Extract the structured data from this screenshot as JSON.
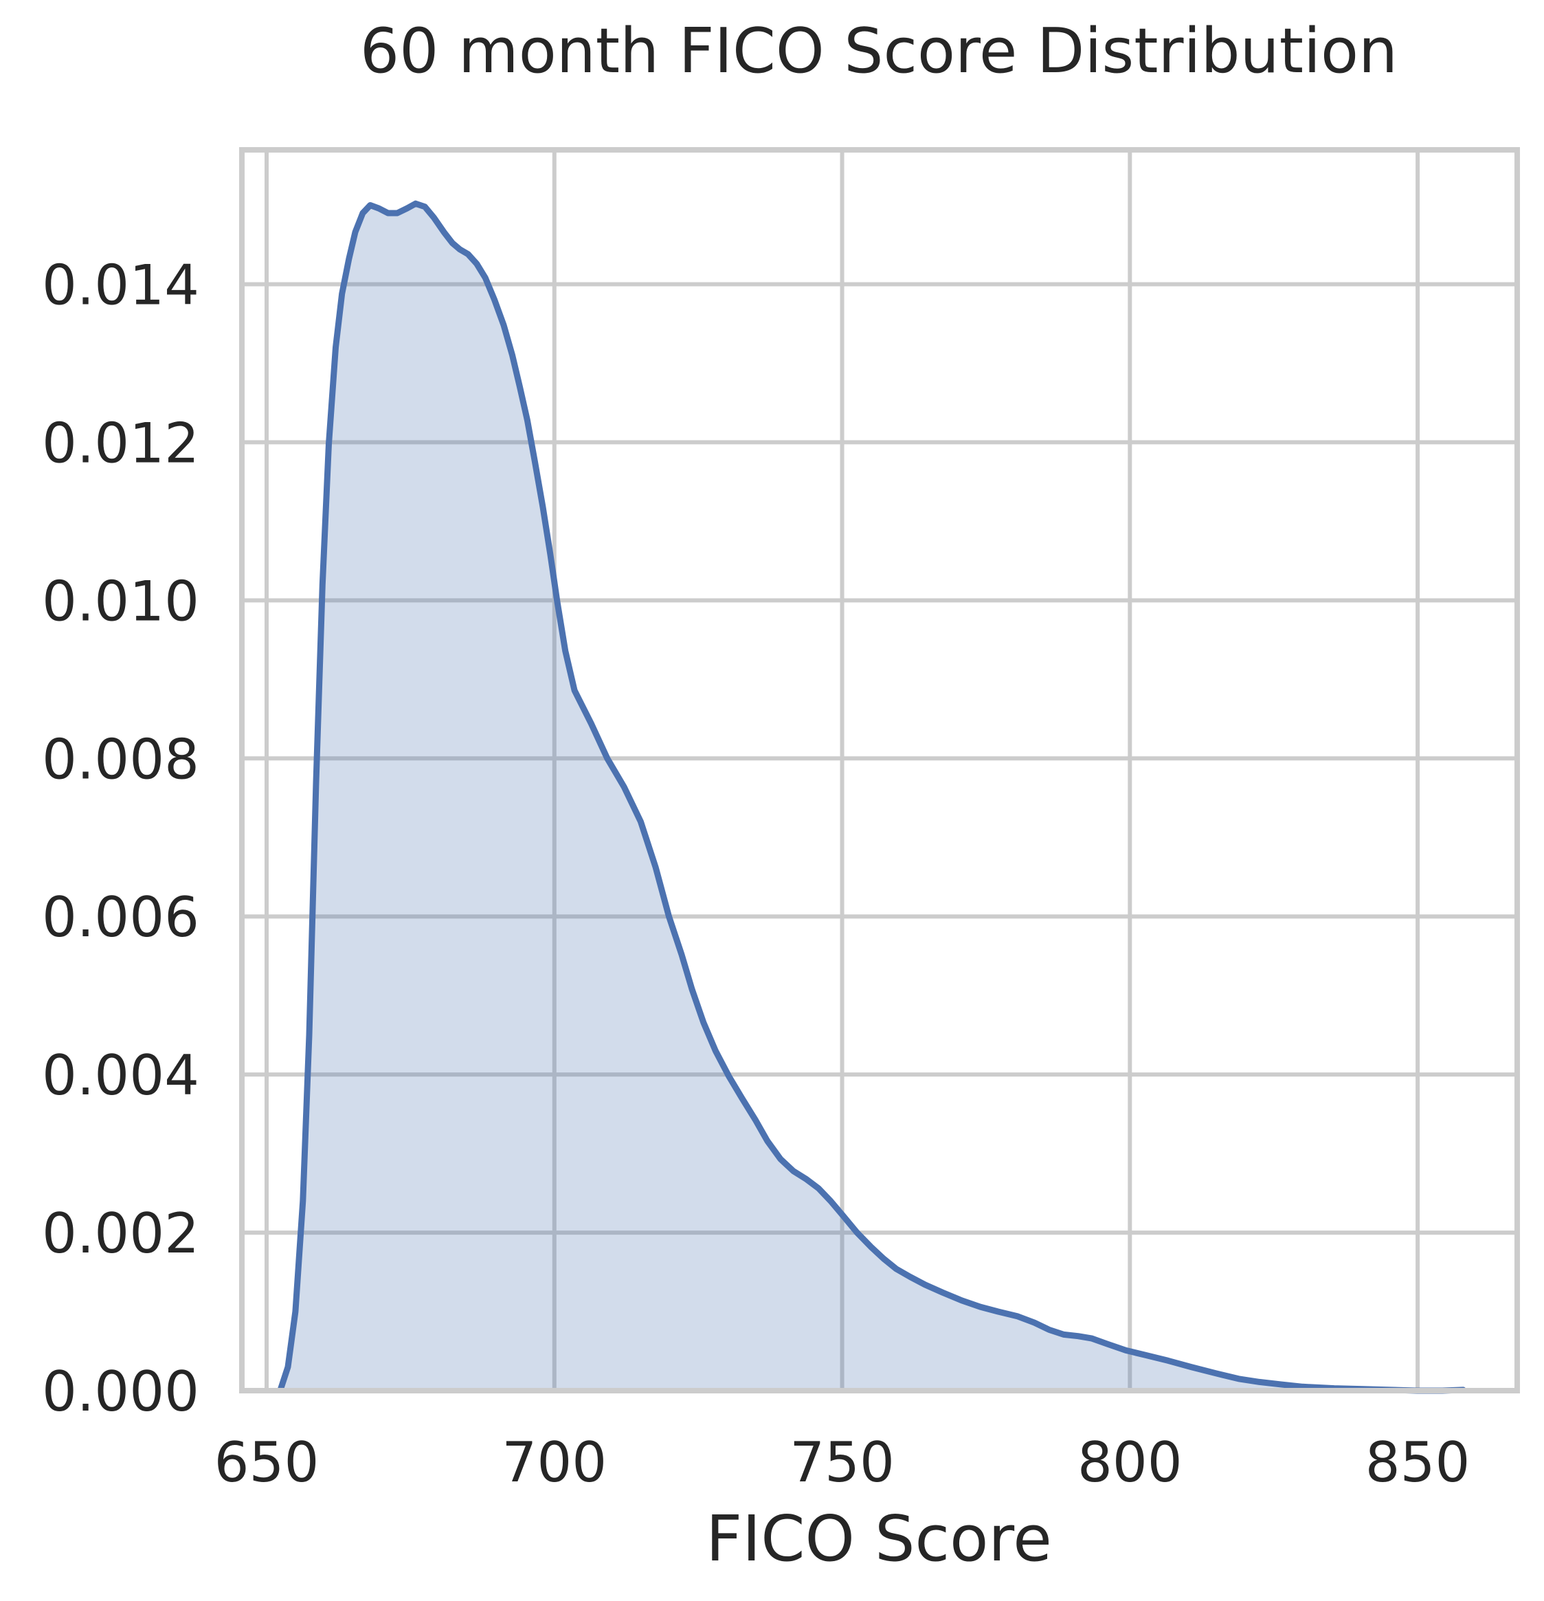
{
  "chart_data": {
    "type": "area",
    "title": "60 month FICO Score Distribution",
    "xlabel": "FICO Score",
    "ylabel": "",
    "xlim": [
      645.7,
      867.3
    ],
    "ylim": [
      0.0,
      0.0157
    ],
    "x_ticks": [
      650,
      700,
      750,
      800,
      850
    ],
    "x_tick_labels": [
      "650",
      "700",
      "750",
      "800",
      "850"
    ],
    "y_ticks": [
      0.0,
      0.002,
      0.004,
      0.006,
      0.008,
      0.01,
      0.012,
      0.014
    ],
    "y_tick_labels": [
      "0.000",
      "0.002",
      "0.004",
      "0.006",
      "0.008",
      "0.010",
      "0.012",
      "0.014"
    ],
    "grid": true,
    "legend": "none",
    "series": [
      {
        "line_color": "#4c72b0",
        "fill_color": "#4c72b0",
        "fill_opacity": 0.25,
        "x": [
          652.4,
          653.7,
          655.0,
          656.3,
          657.4,
          658.6,
          659.7,
          660.8,
          662.0,
          663.1,
          664.3,
          665.4,
          666.7,
          668.0,
          669.5,
          671.1,
          672.7,
          674.4,
          675.9,
          677.5,
          679.1,
          680.8,
          682.3,
          683.6,
          685.0,
          686.5,
          688.0,
          689.6,
          691.2,
          692.7,
          694.0,
          695.3,
          696.6,
          698.0,
          699.3,
          700.5,
          701.9,
          703.5,
          706.4,
          709.2,
          712.1,
          715.0,
          717.6,
          719.9,
          722.1,
          723.9,
          725.9,
          728.0,
          730.3,
          732.6,
          734.9,
          737.0,
          739.3,
          741.5,
          743.7,
          745.9,
          748.0,
          750.2,
          752.6,
          755.0,
          757.2,
          759.4,
          761.8,
          764.4,
          767.5,
          770.8,
          774.0,
          777.1,
          780.5,
          783.4,
          786.0,
          788.5,
          791.0,
          793.4,
          796.1,
          799.3,
          802.7,
          806.6,
          810.6,
          814.9,
          818.9,
          822.5,
          826.1,
          830.0,
          835.5,
          840.6,
          845.3,
          849.9,
          854.3,
          857.9
        ],
        "y": [
          1e-05,
          0.0003,
          0.001,
          0.0024,
          0.0045,
          0.0077,
          0.0102,
          0.01198,
          0.0132,
          0.01388,
          0.01432,
          0.01466,
          0.0149,
          0.015,
          0.01496,
          0.0149,
          0.0149,
          0.01496,
          0.01502,
          0.01498,
          0.01484,
          0.01466,
          0.01452,
          0.01444,
          0.01438,
          0.01426,
          0.01408,
          0.0138,
          0.01348,
          0.0131,
          0.0127,
          0.01228,
          0.01176,
          0.01118,
          0.01058,
          0.00998,
          0.00936,
          0.00886,
          0.00844,
          0.008,
          0.00764,
          0.0072,
          0.00662,
          0.006,
          0.00552,
          0.00508,
          0.00466,
          0.0043,
          0.00398,
          0.0037,
          0.00343,
          0.00316,
          0.00293,
          0.00278,
          0.00268,
          0.00256,
          0.0024,
          0.00221,
          0.002,
          0.00182,
          0.00167,
          0.00154,
          0.00144,
          0.00134,
          0.00124,
          0.00114,
          0.00106,
          0.001,
          0.00094,
          0.00086,
          0.00077,
          0.00071,
          0.00069,
          0.00066,
          0.00059,
          0.00051,
          0.00045,
          0.00038,
          0.0003,
          0.00022,
          0.00015,
          0.00011,
          8e-05,
          5e-05,
          3e-05,
          2e-05,
          1e-05,
          0.0,
          0.0,
          1e-05
        ]
      }
    ]
  }
}
